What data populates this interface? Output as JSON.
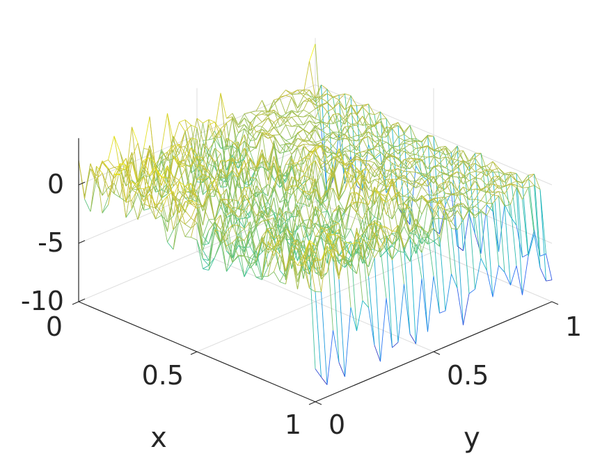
{
  "chart_data": {
    "type": "surface-mesh",
    "xlabel": "x",
    "ylabel": "y",
    "zlabel": "",
    "xlim": [
      0,
      1
    ],
    "ylim": [
      0,
      1
    ],
    "zlim": [
      -10,
      4
    ],
    "xticks": [
      {
        "value": 0,
        "label": "0"
      },
      {
        "value": 0.5,
        "label": "0.5"
      },
      {
        "value": 1,
        "label": "1"
      }
    ],
    "yticks": [
      {
        "value": 0,
        "label": "0"
      },
      {
        "value": 0.5,
        "label": "0.5"
      },
      {
        "value": 1,
        "label": "1"
      }
    ],
    "zticks": [
      {
        "value": 0,
        "label": "0"
      },
      {
        "value": -5,
        "label": "-5"
      },
      {
        "value": -10,
        "label": "-10"
      }
    ],
    "grid": true,
    "colormap": "parula",
    "colormap_stops": [
      "#3e26a8",
      "#2d6efa",
      "#12b2cb",
      "#4bc48c",
      "#c4bc3a",
      "#f9fb0e"
    ],
    "mesh_resolution": 41,
    "surface_description": "noisy random field with small mean near 0; spikes up to about 3 near x=0 edge, drop to about -9 at boundary x=1 and y=1 edges; smoother region near y=1",
    "z_range_approx": [
      -9,
      3
    ]
  }
}
